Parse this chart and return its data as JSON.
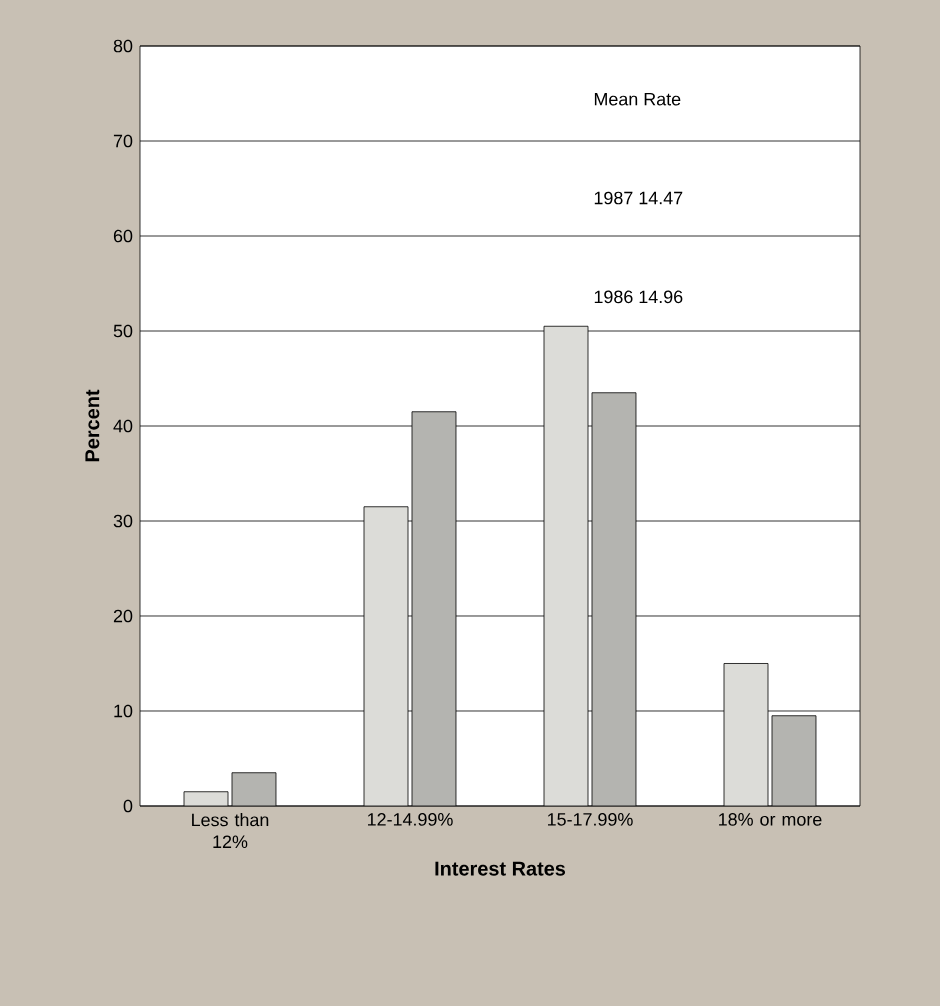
{
  "chart_data": {
    "type": "bar",
    "xlabel": "Interest Rates",
    "ylabel": "Percent",
    "categories": [
      "Less than 12%",
      "12-14.99%",
      "15-17.99%",
      "18% or more"
    ],
    "series": [
      {
        "color": "#dcdcd8",
        "values": [
          1.5,
          31.5,
          50.5,
          15
        ]
      },
      {
        "color": "#b4b4b0",
        "values": [
          3.5,
          41.5,
          43.5,
          9.5
        ]
      }
    ],
    "ylim": [
      0,
      80
    ],
    "yticks": [
      0,
      10,
      20,
      30,
      40,
      50,
      60,
      70,
      80
    ],
    "grid": "y",
    "annotations": [
      "Mean Rate",
      "1987 14.47",
      "1986 14.96"
    ]
  }
}
